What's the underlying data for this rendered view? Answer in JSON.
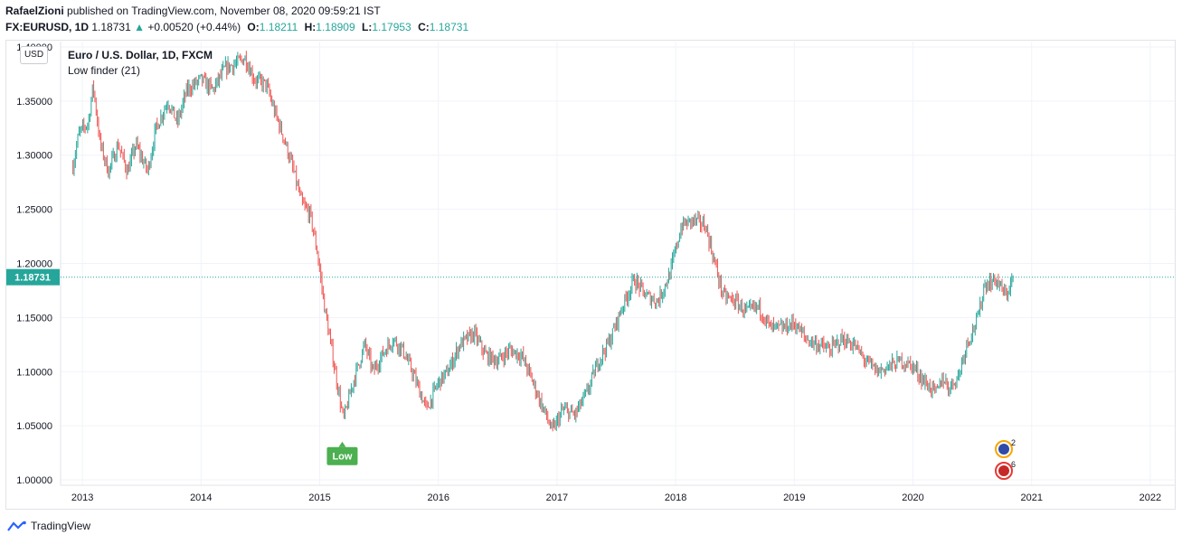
{
  "header": {
    "author": "RafaelZioni",
    "published_text": "published on TradingView.com, November 08, 2020 09:59:21 IST"
  },
  "quote": {
    "symbol_tf": "FX:EURUSD, 1D",
    "last": "1.18731",
    "change": "+0.00520 (+0.44%)",
    "open_label": "O:",
    "open": "1.18211",
    "high_label": "H:",
    "high": "1.18909",
    "low_label": "L:",
    "low": "1.17953",
    "close_label": "C:",
    "close": "1.18731"
  },
  "legend": {
    "title": "Euro / U.S. Dollar, 1D, FXCM",
    "indicator": "Low finder  (21)",
    "currency": "USD"
  },
  "footer": {
    "brand": "TradingView"
  },
  "colors": {
    "up": "#26a69a",
    "down": "#ef5350",
    "label_green": "#4caf50",
    "grid": "#f0f3fa"
  },
  "chart_data": {
    "type": "candlestick",
    "y_ticks": [
      "1.40000",
      "1.35000",
      "1.30000",
      "1.25000",
      "1.20000",
      "1.15000",
      "1.10000",
      "1.05000",
      "1.00000"
    ],
    "x_ticks": [
      "2013",
      "2014",
      "2015",
      "2016",
      "2017",
      "2018",
      "2019",
      "2020",
      "2021",
      "2022"
    ],
    "ylim": [
      0.995,
      1.405
    ],
    "last_price_label": "1.18731",
    "last_price": 1.18731,
    "annotation": {
      "text": "Low",
      "x": 2015.19,
      "y": 1.047
    },
    "price_path": [
      [
        2012.92,
        1.29
      ],
      [
        2012.97,
        1.32
      ],
      [
        2013.05,
        1.33
      ],
      [
        2013.09,
        1.365
      ],
      [
        2013.15,
        1.31
      ],
      [
        2013.22,
        1.285
      ],
      [
        2013.3,
        1.31
      ],
      [
        2013.38,
        1.285
      ],
      [
        2013.45,
        1.31
      ],
      [
        2013.55,
        1.285
      ],
      [
        2013.62,
        1.325
      ],
      [
        2013.72,
        1.35
      ],
      [
        2013.8,
        1.33
      ],
      [
        2013.88,
        1.36
      ],
      [
        2014.0,
        1.37
      ],
      [
        2014.1,
        1.36
      ],
      [
        2014.2,
        1.38
      ],
      [
        2014.3,
        1.385
      ],
      [
        2014.37,
        1.39
      ],
      [
        2014.45,
        1.37
      ],
      [
        2014.55,
        1.365
      ],
      [
        2014.62,
        1.34
      ],
      [
        2014.7,
        1.315
      ],
      [
        2014.78,
        1.285
      ],
      [
        2014.85,
        1.255
      ],
      [
        2014.92,
        1.245
      ],
      [
        2014.98,
        1.21
      ],
      [
        2015.04,
        1.16
      ],
      [
        2015.1,
        1.12
      ],
      [
        2015.2,
        1.055
      ],
      [
        2015.28,
        1.09
      ],
      [
        2015.38,
        1.125
      ],
      [
        2015.45,
        1.1
      ],
      [
        2015.55,
        1.12
      ],
      [
        2015.62,
        1.13
      ],
      [
        2015.7,
        1.12
      ],
      [
        2015.78,
        1.1
      ],
      [
        2015.9,
        1.065
      ],
      [
        2016.0,
        1.09
      ],
      [
        2016.08,
        1.1
      ],
      [
        2016.18,
        1.125
      ],
      [
        2016.3,
        1.135
      ],
      [
        2016.4,
        1.115
      ],
      [
        2016.5,
        1.11
      ],
      [
        2016.6,
        1.12
      ],
      [
        2016.7,
        1.115
      ],
      [
        2016.78,
        1.095
      ],
      [
        2016.85,
        1.075
      ],
      [
        2016.96,
        1.045
      ],
      [
        2017.05,
        1.065
      ],
      [
        2017.15,
        1.06
      ],
      [
        2017.25,
        1.08
      ],
      [
        2017.35,
        1.11
      ],
      [
        2017.45,
        1.13
      ],
      [
        2017.55,
        1.16
      ],
      [
        2017.65,
        1.185
      ],
      [
        2017.75,
        1.17
      ],
      [
        2017.85,
        1.165
      ],
      [
        2017.95,
        1.19
      ],
      [
        2018.05,
        1.235
      ],
      [
        2018.15,
        1.24
      ],
      [
        2018.25,
        1.235
      ],
      [
        2018.33,
        1.2
      ],
      [
        2018.4,
        1.17
      ],
      [
        2018.5,
        1.165
      ],
      [
        2018.6,
        1.155
      ],
      [
        2018.7,
        1.16
      ],
      [
        2018.8,
        1.14
      ],
      [
        2018.9,
        1.14
      ],
      [
        2019.0,
        1.145
      ],
      [
        2019.1,
        1.13
      ],
      [
        2019.2,
        1.125
      ],
      [
        2019.3,
        1.12
      ],
      [
        2019.4,
        1.13
      ],
      [
        2019.5,
        1.125
      ],
      [
        2019.6,
        1.11
      ],
      [
        2019.7,
        1.1
      ],
      [
        2019.8,
        1.105
      ],
      [
        2019.9,
        1.11
      ],
      [
        2020.0,
        1.105
      ],
      [
        2020.1,
        1.09
      ],
      [
        2020.2,
        1.08
      ],
      [
        2020.25,
        1.095
      ],
      [
        2020.3,
        1.085
      ],
      [
        2020.38,
        1.095
      ],
      [
        2020.45,
        1.125
      ],
      [
        2020.55,
        1.15
      ],
      [
        2020.6,
        1.18
      ],
      [
        2020.7,
        1.185
      ],
      [
        2020.78,
        1.17
      ],
      [
        2020.85,
        1.18731
      ]
    ]
  }
}
